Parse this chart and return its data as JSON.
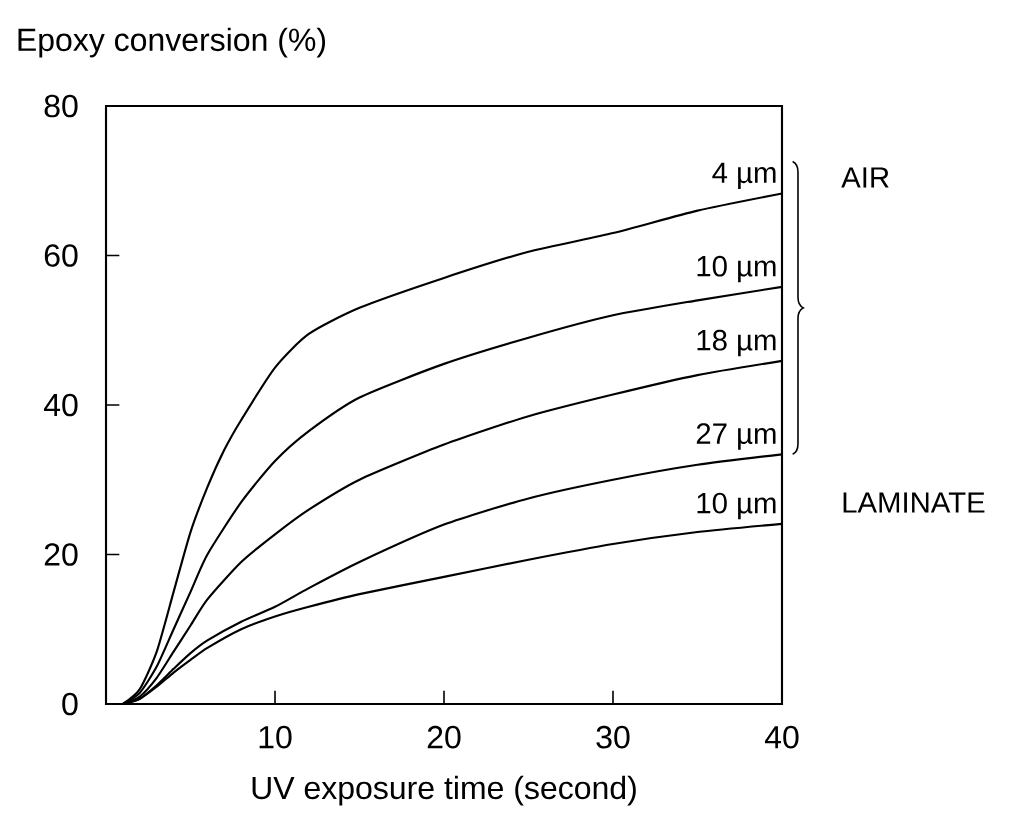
{
  "chart_data": {
    "type": "line",
    "xlabel": "UV exposure time (second)",
    "ylabel": "Epoxy conversion (%)",
    "xlim": [
      0,
      40
    ],
    "ylim": [
      0,
      80
    ],
    "xticks": [
      10,
      20,
      30,
      40
    ],
    "yticks": [
      0,
      20,
      40,
      60,
      80
    ],
    "marker": "none",
    "line_style": "solid",
    "legend": false,
    "grid": false,
    "annotations": [
      "AIR",
      "LAMINATE"
    ],
    "series": [
      {
        "name": "4 µm",
        "color": "#000000",
        "x": [
          1,
          2,
          3,
          4,
          5,
          6,
          7,
          8,
          10,
          12,
          15,
          20,
          25,
          30,
          35,
          40
        ],
        "values": [
          0,
          2,
          7,
          15,
          23,
          29,
          34,
          38,
          45,
          49.5,
          53,
          57,
          60.5,
          63,
          66,
          68.3
        ]
      },
      {
        "name": "10 µm",
        "color": "#000000",
        "x": [
          1,
          2,
          3,
          4,
          5,
          6,
          8,
          10,
          12,
          15,
          20,
          25,
          30,
          35,
          40
        ],
        "values": [
          0,
          1.5,
          5,
          10,
          15,
          20,
          27,
          32.5,
          36.5,
          41,
          45.5,
          49,
          52,
          54,
          55.8
        ]
      },
      {
        "name": "18 µm",
        "color": "#000000",
        "x": [
          1,
          2,
          3,
          4,
          5,
          6,
          8,
          10,
          12,
          15,
          20,
          25,
          30,
          35,
          40
        ],
        "values": [
          0,
          1,
          3.5,
          7,
          10.5,
          14,
          19,
          22.7,
          26,
          30,
          34.7,
          38.5,
          41.4,
          44,
          45.9
        ]
      },
      {
        "name": "27 µm",
        "color": "#000000",
        "x": [
          1,
          2,
          3,
          4,
          5,
          6,
          8,
          10,
          12,
          15,
          20,
          25,
          30,
          35,
          40
        ],
        "values": [
          0,
          0.7,
          2.5,
          4.7,
          6.8,
          8.5,
          11,
          13,
          15.5,
          19,
          24,
          27.5,
          30,
          32,
          33.4
        ]
      },
      {
        "name": "10 µm",
        "color": "#000000",
        "x": [
          1,
          2,
          3,
          4,
          5,
          6,
          8,
          10,
          12,
          15,
          20,
          25,
          30,
          35,
          40
        ],
        "values": [
          0,
          0.7,
          2.3,
          4.2,
          5.9,
          7.5,
          10,
          11.7,
          13,
          14.7,
          17,
          19.3,
          21.4,
          23,
          24.1
        ]
      }
    ]
  }
}
